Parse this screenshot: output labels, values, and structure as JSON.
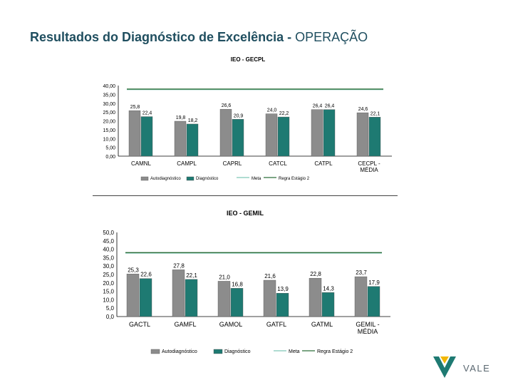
{
  "slide": {
    "title_bold": "Resultados do Diagnóstico de Excelência - ",
    "title_rest": "OPERAÇÃO",
    "logo_text": "VALE"
  },
  "colors": {
    "auto": "#8c8c8c",
    "diag": "#1e7a72",
    "meta": "#7fc6b6",
    "regra": "#2e6f3a"
  },
  "chart_data": [
    {
      "type": "bar",
      "title": "IEO - GECPL",
      "categories": [
        "CAMNL",
        "CAMPL",
        "CAPRL",
        "CATCL",
        "CATPL",
        "CECPL - MÉDIA"
      ],
      "series": [
        {
          "name": "Autodiagnóstico",
          "values": [
            25.8,
            19.8,
            26.6,
            24.0,
            26.4,
            24.6
          ],
          "labels": [
            "25,8",
            "19,8",
            "26,6",
            "24,0",
            "26,4",
            "24,6"
          ]
        },
        {
          "name": "Diagnóstico",
          "values": [
            22.4,
            18.2,
            20.9,
            22.2,
            26.4,
            22.1
          ],
          "labels": [
            "22,4",
            "18,2",
            "20,9",
            "22,2",
            "26,4",
            "22,1"
          ]
        }
      ],
      "lines": [
        {
          "name": "Meta",
          "value": 38.0
        },
        {
          "name": "Regra Estágio 2",
          "value": 38.0
        }
      ],
      "yticks": [
        "40,00",
        "35,00",
        "30,00",
        "25,00",
        "20,00",
        "15,00",
        "10,00",
        "5,00",
        "0,00"
      ],
      "ylim": [
        0,
        40
      ],
      "legend_placement": "bottom"
    },
    {
      "type": "bar",
      "title": "IEO - GEMIL",
      "categories": [
        "GACTL",
        "GAMFL",
        "GAMOL",
        "GATFL",
        "GATML",
        "GEMIL - MÉDIA"
      ],
      "series": [
        {
          "name": "Autodiagnóstico",
          "values": [
            25.3,
            27.8,
            21.0,
            21.6,
            22.8,
            23.7
          ],
          "labels": [
            "25,3",
            "27,8",
            "21,0",
            "21,6",
            "22,8",
            "23,7"
          ]
        },
        {
          "name": "Diagnóstico",
          "values": [
            22.6,
            22.1,
            16.8,
            13.9,
            14.3,
            17.9
          ],
          "labels": [
            "22,6",
            "22,1",
            "16,8",
            "13,9",
            "14,3",
            "17,9"
          ]
        }
      ],
      "lines": [
        {
          "name": "Meta",
          "value": 38.0
        },
        {
          "name": "Regra Estágio 2",
          "value": 38.0
        }
      ],
      "yticks": [
        "50,0",
        "45,0",
        "40,0",
        "35,0",
        "30,0",
        "25,0",
        "20,0",
        "15,0",
        "10,0",
        "5,0",
        "0,0"
      ],
      "ylim": [
        0,
        50
      ],
      "legend_placement": "bottom"
    }
  ]
}
